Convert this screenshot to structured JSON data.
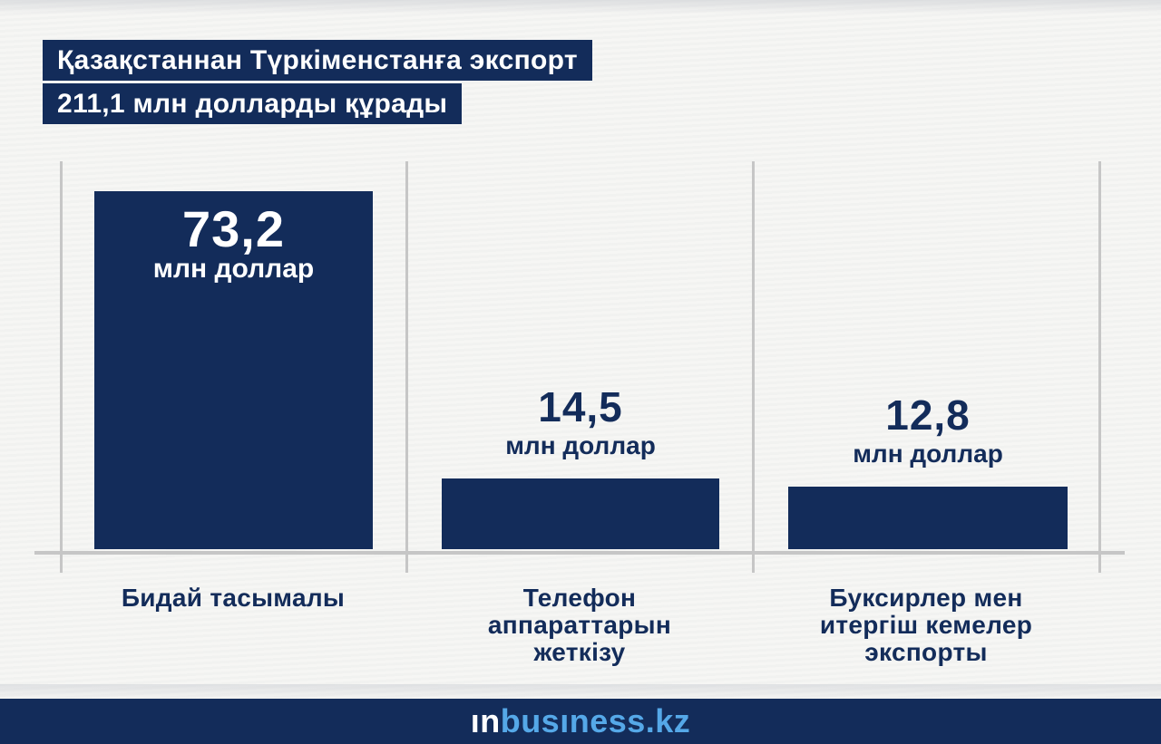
{
  "title": {
    "line1": "Қазақстаннан Түркіменстанға экспорт",
    "line2": "211,1 млн долларды құрады"
  },
  "colors": {
    "navy": "#132c5a",
    "light_blue": "#55a8e8",
    "grid_gray": "#c6c6c6",
    "background": "#f4f4f2",
    "value_text_on_bar": "#ffffff"
  },
  "chart_data": {
    "type": "bar",
    "title": "Қазақстаннан Түркіменстанға экспорт 211,1 млн долларды құрады",
    "unit": "млн доллар",
    "categories": [
      "Бидай тасымалы",
      "Телефон аппараттарын жеткізу",
      "Буксирлер мен итергіш кемелер экспорты"
    ],
    "values": [
      73.2,
      14.5,
      12.8
    ],
    "value_labels": [
      "73,2",
      "14,5",
      "12,8"
    ],
    "ylim": [
      0,
      75
    ],
    "legend": "none",
    "grid": "vertical panel dividers and gray baseline only, no axis ticks",
    "bar_color": "#132c5a",
    "layout": {
      "pixels_per_unit": 5.4,
      "baseline_y": 608
    },
    "groups": [
      {
        "value_label": "73,2",
        "unit": "млн доллар",
        "label_lines": [
          "Бидай тасымалы"
        ]
      },
      {
        "value_label": "14,5",
        "unit": "млн доллар",
        "label_lines": [
          "Телефон",
          "аппараттарын",
          "жеткізу"
        ]
      },
      {
        "value_label": "12,8",
        "unit": "млн доллар",
        "label_lines": [
          "Буксирлер мен",
          "итергіш кемелер",
          "экспорты"
        ]
      }
    ]
  },
  "footer": {
    "logo_white": "ın",
    "logo_blue": "busıness.kz"
  }
}
